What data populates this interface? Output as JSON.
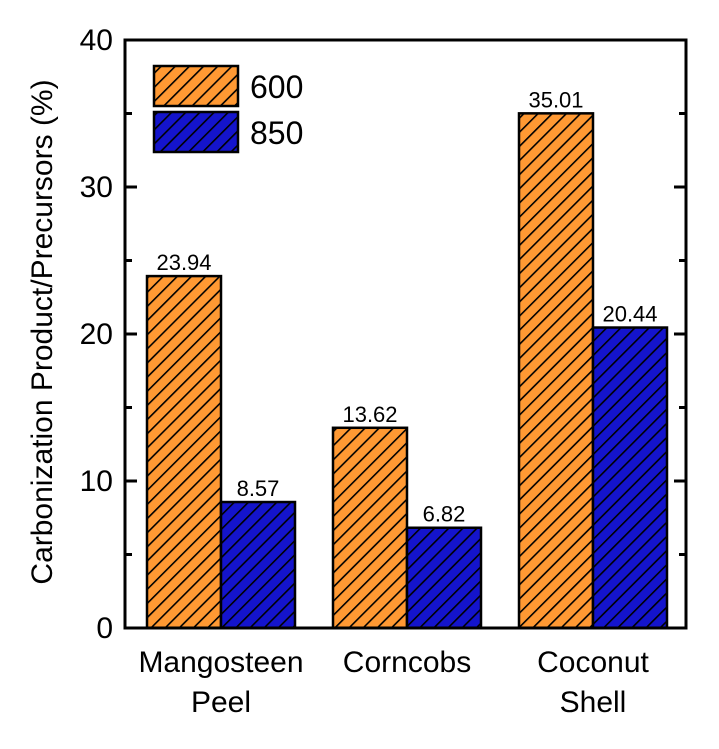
{
  "chart_data": {
    "type": "bar",
    "title": "",
    "xlabel": "",
    "ylabel": "Carbonization Product/Precursors (%)",
    "ylim": [
      0,
      40
    ],
    "yticks": [
      0,
      10,
      20,
      30,
      40
    ],
    "categories": [
      {
        "line1": "Mangosteen",
        "line2": "Peel"
      },
      {
        "line1": "Corncobs",
        "line2": ""
      },
      {
        "line1": "Coconut",
        "line2": "Shell"
      }
    ],
    "series": [
      {
        "name": "600",
        "color": "#ff9933",
        "values": [
          23.94,
          13.62,
          35.01
        ],
        "labels": [
          "23.94",
          "13.62",
          "35.01"
        ]
      },
      {
        "name": "850",
        "color": "#1414cc",
        "values": [
          8.57,
          6.82,
          20.44
        ],
        "labels": [
          "8.57",
          "6.82",
          "20.44"
        ]
      }
    ],
    "legend_position": "top-left"
  }
}
